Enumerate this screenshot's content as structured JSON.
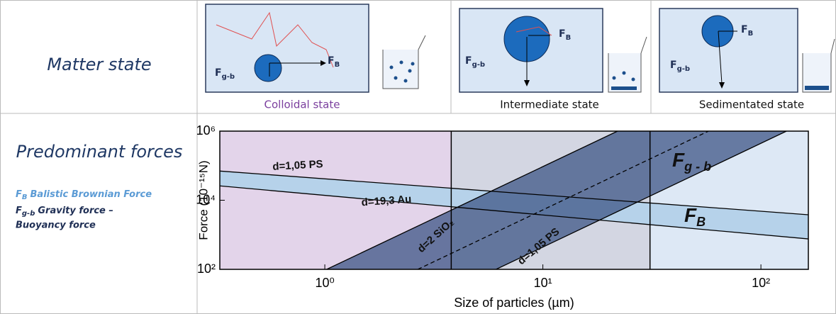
{
  "row_headers": {
    "matter_state": "Matter state",
    "predominant_forces": "Predominant forces"
  },
  "legend": [
    {
      "symbol": "F",
      "sub": "B",
      "text": "Balistic Brownian Force"
    },
    {
      "symbol": "F",
      "sub": "g-b",
      "text": "Gravity force –",
      "text2": "Buoyancy force"
    }
  ],
  "panels": [
    {
      "caption": "Colloidal state",
      "force_labels": [
        {
          "symbol": "F",
          "sub": "g-b"
        },
        {
          "symbol": "F",
          "sub": "B"
        }
      ]
    },
    {
      "caption": "Intermediate state",
      "force_labels": [
        {
          "symbol": "F",
          "sub": "g-b"
        },
        {
          "symbol": "F",
          "sub": "B"
        }
      ]
    },
    {
      "caption": "Sedimentated state",
      "force_labels": [
        {
          "symbol": "F",
          "sub": "g-b"
        },
        {
          "symbol": "F",
          "sub": "B"
        }
      ]
    }
  ],
  "chart_data": {
    "type": "line",
    "xlabel": "Size of particles (µm)",
    "ylabel": "Force (10⁻¹⁵N)",
    "xscale": "log",
    "yscale": "log",
    "xlim": [
      0.33,
      165
    ],
    "ylim": [
      100,
      1000000
    ],
    "xticks": [
      {
        "value": 1,
        "label": "10⁰"
      },
      {
        "value": 10,
        "label": "10¹"
      },
      {
        "value": 100,
        "label": "10²"
      }
    ],
    "yticks": [
      {
        "value": 100,
        "label": "10²"
      },
      {
        "value": 10000,
        "label": "10⁴"
      },
      {
        "value": 1000000,
        "label": "10⁶"
      }
    ],
    "region_bounds": [
      3.8,
      31
    ],
    "region_colors": [
      "#e3d4ea",
      "#d3d6e2",
      "#dde8f5"
    ],
    "bands": [
      {
        "color": "#b6d2ea"
      },
      {
        "color": "#3e5686"
      }
    ],
    "series": [
      {
        "name": "d=1,05 PS",
        "color": "#000000",
        "x": [
          0.33,
          165
        ],
        "values": [
          70000,
          3800
        ]
      },
      {
        "name": "d=19,3 Au",
        "color": "#000000",
        "x": [
          0.33,
          165
        ],
        "values": [
          26000,
          760
        ]
      },
      {
        "color": "#000000",
        "x": [
          1.02,
          22
        ],
        "values": [
          100,
          1000000
        ]
      },
      {
        "name": "d=1,05 PS",
        "color": "#000000",
        "x": [
          6.1,
          131
        ],
        "values": [
          100,
          1000000
        ]
      },
      {
        "name": "d=2 SiO₂",
        "color": "#000000",
        "dashed": true,
        "x": [
          2.67,
          57.5
        ],
        "values": [
          100,
          1000000
        ]
      }
    ],
    "annotations": [
      {
        "symbol": "F",
        "sub": "g - b"
      },
      {
        "symbol": "F",
        "sub": "B"
      }
    ]
  }
}
